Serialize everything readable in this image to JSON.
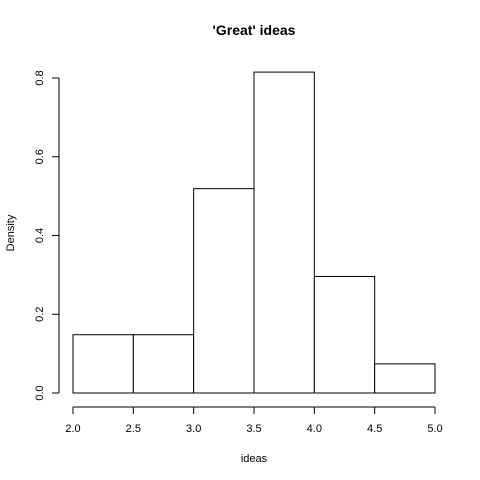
{
  "chart_data": {
    "type": "bar",
    "title": "'Great' ideas",
    "xlabel": "ideas",
    "ylabel": "Density",
    "bins": [
      {
        "from": 2.0,
        "to": 2.5,
        "value": 0.148
      },
      {
        "from": 2.5,
        "to": 3.0,
        "value": 0.148
      },
      {
        "from": 3.0,
        "to": 3.5,
        "value": 0.519
      },
      {
        "from": 3.5,
        "to": 4.0,
        "value": 0.815
      },
      {
        "from": 4.0,
        "to": 4.5,
        "value": 0.296
      },
      {
        "from": 4.5,
        "to": 5.0,
        "value": 0.074
      }
    ],
    "xlim": [
      2.0,
      5.0
    ],
    "ylim": [
      0.0,
      0.8
    ],
    "x_ticks": [
      "2.0",
      "2.5",
      "3.0",
      "3.5",
      "4.0",
      "4.5",
      "5.0"
    ],
    "y_ticks": [
      "0.0",
      "0.2",
      "0.4",
      "0.6",
      "0.8"
    ],
    "grid": false
  }
}
